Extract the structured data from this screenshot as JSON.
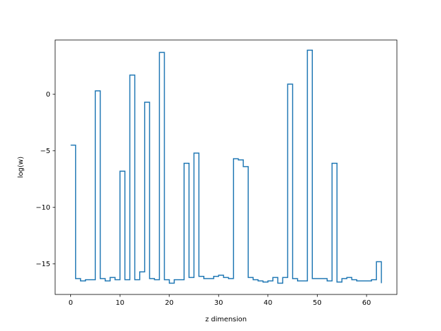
{
  "chart_data": {
    "type": "line",
    "drawstyle": "steps-post",
    "title": "",
    "xlabel": "z dimension",
    "ylabel": "log(w)",
    "xlim": [
      -3.15,
      66.15
    ],
    "ylim": [
      -17.7,
      4.8
    ],
    "x_ticks": [
      0,
      10,
      20,
      30,
      40,
      50,
      60
    ],
    "y_ticks": [
      0,
      -5,
      -10,
      -15
    ],
    "grid": false,
    "legend": "none",
    "line_color": "#1f77b4",
    "series": [
      {
        "x": [
          0,
          1,
          2,
          3,
          4,
          5,
          6,
          7,
          8,
          9,
          10,
          11,
          12,
          13,
          14,
          15,
          16,
          17,
          18,
          19,
          20,
          21,
          22,
          23,
          24,
          25,
          26,
          27,
          28,
          29,
          30,
          31,
          32,
          33,
          34,
          35,
          36,
          37,
          38,
          39,
          40,
          41,
          42,
          43,
          44,
          45,
          46,
          47,
          48,
          49,
          50,
          51,
          52,
          53,
          54,
          55,
          56,
          57,
          58,
          59,
          60,
          61,
          62,
          63
        ],
        "values": [
          -4.5,
          -16.3,
          -16.5,
          -16.4,
          -16.4,
          0.3,
          -16.3,
          -16.5,
          -16.2,
          -16.4,
          -6.8,
          -16.4,
          1.7,
          -16.4,
          -15.7,
          -0.7,
          -16.3,
          -16.4,
          3.7,
          -16.4,
          -16.7,
          -16.4,
          -16.4,
          -6.1,
          -16.2,
          -5.2,
          -16.1,
          -16.3,
          -16.3,
          -16.1,
          -16.0,
          -16.2,
          -16.3,
          -5.7,
          -5.8,
          -6.4,
          -16.2,
          -16.4,
          -16.5,
          -16.6,
          -16.5,
          -16.2,
          -16.7,
          -16.2,
          0.9,
          -16.3,
          -16.5,
          -16.5,
          3.9,
          -16.3,
          -16.3,
          -16.3,
          -16.5,
          -6.1,
          -16.6,
          -16.3,
          -16.2,
          -16.4,
          -16.5,
          -16.5,
          -16.5,
          -16.4,
          -14.8,
          -16.7
        ]
      }
    ]
  }
}
